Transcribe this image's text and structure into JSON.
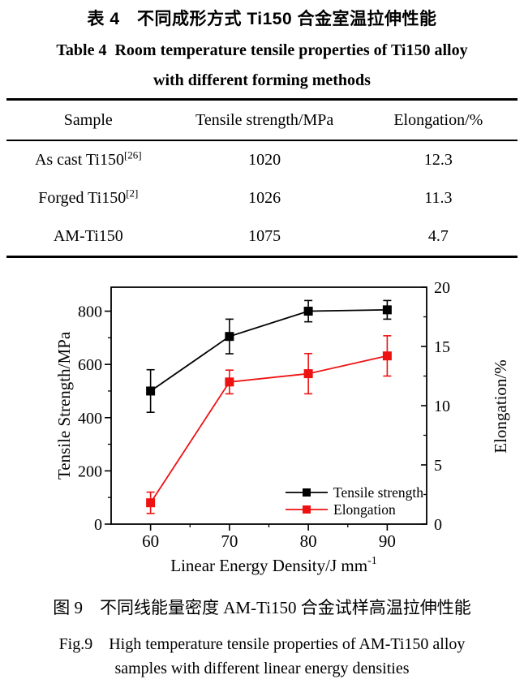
{
  "titles": {
    "table_cn": "表 4　不同成形方式 Ti150 合金室温拉伸性能",
    "table_en_line1": "Table 4  Room temperature tensile properties of Ti150 alloy",
    "table_en_line2": "with different forming methods"
  },
  "table": {
    "headers": [
      "Sample",
      "Tensile strength/MPa",
      "Elongation/%"
    ],
    "rows": [
      {
        "sample": "As cast Ti150",
        "sample_sup": "[26]",
        "tensile": "1020",
        "elongation": "12.3"
      },
      {
        "sample": "Forged Ti150",
        "sample_sup": "[2]",
        "tensile": "1026",
        "elongation": "11.3"
      },
      {
        "sample": "AM-Ti150",
        "sample_sup": "",
        "tensile": "1075",
        "elongation": "4.7"
      }
    ]
  },
  "chart_data": {
    "type": "line",
    "x": [
      60,
      70,
      80,
      90
    ],
    "xlabel_base": "Linear Energy Density/J mm",
    "xlabel_sup": "-1",
    "x_axis": {
      "range": [
        55,
        95
      ],
      "ticks": [
        60,
        70,
        80,
        90
      ],
      "minor_ticks": [
        65,
        75,
        85
      ]
    },
    "left_axis": {
      "label": "Tensile Strength/MPa",
      "range": [
        0,
        890
      ],
      "ticks": [
        0,
        200,
        400,
        600,
        800
      ],
      "minor_ticks": [
        100,
        300,
        500,
        700
      ]
    },
    "right_axis": {
      "label": "Elongation/%",
      "range": [
        0,
        20
      ],
      "ticks": [
        0,
        5,
        10,
        15,
        20
      ],
      "minor_ticks": [
        2.5,
        7.5,
        12.5,
        17.5
      ]
    },
    "series": [
      {
        "name": "Tensile strength",
        "axis": "left",
        "color": "#000000",
        "values": [
          500,
          705,
          800,
          805
        ],
        "errors": [
          80,
          65,
          40,
          35
        ]
      },
      {
        "name": "Elongation",
        "axis": "right",
        "color": "#ee1111",
        "values": [
          1.8,
          12.0,
          12.7,
          14.2
        ],
        "errors": [
          0.9,
          1.0,
          1.7,
          1.7
        ]
      }
    ],
    "legend": {
      "position": "lower right",
      "entries": [
        "Tensile strength",
        "Elongation"
      ]
    },
    "grid": false
  },
  "captions": {
    "cn": "图 9　不同线能量密度 AM-Ti150 合金试样高温拉伸性能",
    "en_line1": "Fig.9　High temperature tensile properties of AM-Ti150 alloy",
    "en_line2": "samples with different linear energy densities"
  }
}
